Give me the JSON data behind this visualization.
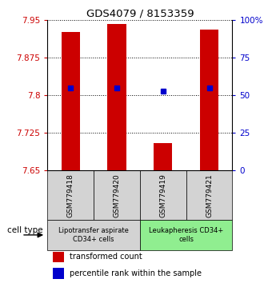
{
  "title": "GDS4079 / 8153359",
  "samples": [
    "GSM779418",
    "GSM779420",
    "GSM779419",
    "GSM779421"
  ],
  "bar_bottoms": [
    7.65,
    7.65,
    7.65,
    7.65
  ],
  "bar_tops": [
    7.925,
    7.942,
    7.705,
    7.93
  ],
  "blue_y": [
    7.815,
    7.815,
    7.808,
    7.815
  ],
  "blue_x": [
    1,
    2,
    3,
    4
  ],
  "ylim": [
    7.65,
    7.95
  ],
  "yticks": [
    7.65,
    7.725,
    7.8,
    7.875,
    7.95
  ],
  "ytick_labels": [
    "7.65",
    "7.725",
    "7.8",
    "7.875",
    "7.95"
  ],
  "right_yticks": [
    0,
    25,
    50,
    75,
    100
  ],
  "right_ytick_labels": [
    "0",
    "25",
    "50",
    "75",
    "100%"
  ],
  "bar_color": "#cc0000",
  "blue_color": "#0000cc",
  "left_tick_color": "#cc0000",
  "right_tick_color": "#0000cc",
  "group1_label": "Lipotransfer aspirate\nCD34+ cells",
  "group2_label": "Leukapheresis CD34+\ncells",
  "group1_color": "#d3d3d3",
  "group2_color": "#90ee90",
  "cell_type_label": "cell type",
  "legend_red": "transformed count",
  "legend_blue": "percentile rank within the sample",
  "bar_width": 0.4
}
